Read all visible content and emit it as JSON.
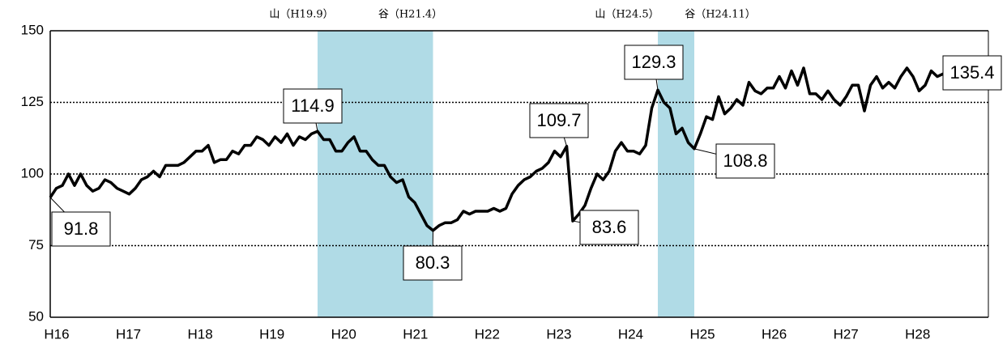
{
  "chart_data": {
    "type": "line",
    "categories": [
      "H16",
      null,
      null,
      null,
      null,
      null,
      null,
      null,
      null,
      null,
      null,
      null,
      "H17",
      null,
      null,
      null,
      null,
      null,
      null,
      null,
      null,
      null,
      null,
      null,
      "H18",
      null,
      null,
      null,
      null,
      null,
      null,
      null,
      null,
      null,
      null,
      null,
      "H19",
      null,
      null,
      null,
      null,
      null,
      null,
      null,
      null,
      null,
      null,
      null,
      "H20",
      null,
      null,
      null,
      null,
      null,
      null,
      null,
      null,
      null,
      null,
      null,
      "H21",
      null,
      null,
      null,
      null,
      null,
      null,
      null,
      null,
      null,
      null,
      null,
      "H22",
      null,
      null,
      null,
      null,
      null,
      null,
      null,
      null,
      null,
      null,
      null,
      "H23",
      null,
      null,
      null,
      null,
      null,
      null,
      null,
      null,
      null,
      null,
      null,
      "H24",
      null,
      null,
      null,
      null,
      null,
      null,
      null,
      null,
      null,
      null,
      null,
      "H25",
      null,
      null,
      null,
      null,
      null,
      null,
      null,
      null,
      null,
      null,
      null,
      "H26",
      null,
      null,
      null,
      null,
      null,
      null,
      null,
      null,
      null,
      null,
      null,
      "H27",
      null,
      null,
      null,
      null,
      null,
      null,
      null,
      null,
      null,
      null,
      null,
      "H28",
      null,
      null,
      null,
      null
    ],
    "values": [
      91.8,
      95,
      96,
      100,
      96,
      100,
      96,
      94,
      95,
      98,
      97,
      95,
      94,
      93,
      95,
      98,
      99,
      101,
      99,
      103,
      103,
      103,
      104,
      106,
      108,
      108,
      110,
      104,
      105,
      105,
      108,
      107,
      110,
      110,
      113,
      112,
      110,
      113,
      111,
      114,
      110,
      113,
      112,
      114,
      114.9,
      112,
      112,
      108,
      108,
      111,
      113,
      108,
      108,
      105,
      103,
      103,
      99,
      97,
      98,
      92,
      90,
      86,
      82,
      80.3,
      82,
      83,
      83,
      84,
      87,
      86,
      87,
      87,
      87,
      88,
      87,
      88,
      93,
      96,
      98,
      99,
      101,
      102,
      104,
      108,
      106,
      109.7,
      83.6,
      86,
      89,
      95,
      100,
      98,
      101,
      108,
      111,
      108,
      108,
      107,
      110,
      123,
      129.3,
      125,
      123,
      114,
      116,
      111,
      108.8,
      114,
      120,
      119,
      127,
      121,
      123,
      126,
      124,
      132,
      129,
      128,
      130,
      130,
      134,
      130,
      136,
      131,
      137,
      128,
      128,
      126,
      129,
      126,
      124,
      127,
      131,
      131,
      122,
      131,
      134,
      130,
      132,
      130,
      134,
      137,
      134,
      129,
      131,
      136,
      134,
      135,
      135.4
    ],
    "value_labels": [
      "91.8",
      null,
      null,
      null,
      null,
      null,
      null,
      null,
      null,
      null,
      null,
      null,
      null,
      null,
      null,
      null,
      null,
      null,
      null,
      null,
      null,
      null,
      null,
      null,
      null,
      null,
      null,
      null,
      null,
      null,
      null,
      null,
      null,
      null,
      null,
      null,
      null,
      null,
      null,
      null,
      null,
      null,
      null,
      null,
      "114.9",
      null,
      null,
      null,
      null,
      null,
      null,
      null,
      null,
      null,
      null,
      null,
      null,
      null,
      null,
      null,
      null,
      null,
      null,
      "80.3",
      null,
      null,
      null,
      null,
      null,
      null,
      null,
      null,
      null,
      null,
      null,
      null,
      null,
      null,
      null,
      null,
      null,
      null,
      null,
      null,
      null,
      "109.7",
      "83.6",
      null,
      null,
      null,
      null,
      null,
      null,
      null,
      null,
      null,
      null,
      null,
      null,
      null,
      "129.3",
      null,
      null,
      null,
      null,
      null,
      "108.8",
      null,
      null,
      null,
      null,
      null,
      null,
      null,
      null,
      null,
      null,
      null,
      null,
      null,
      null,
      null,
      null,
      null,
      null,
      null,
      null,
      null,
      null,
      null,
      null,
      null,
      null,
      null,
      null,
      null,
      null,
      null,
      null,
      null,
      null,
      null,
      null,
      null,
      null,
      null,
      null,
      null,
      "135.4"
    ],
    "color": "#000000",
    "ylim": [
      50,
      150
    ],
    "yticks": [
      50,
      75,
      100,
      125,
      150
    ],
    "grid": true,
    "shaded": [
      {
        "start": 44,
        "end": 63,
        "peak": "山（H19.9）",
        "trough": "谷（H21.4）",
        "color": "#b0dbe6"
      },
      {
        "start": 100,
        "end": 106,
        "peak": "山（H24.5）",
        "trough": "谷（H24.11）",
        "color": "#b0dbe6"
      }
    ]
  }
}
